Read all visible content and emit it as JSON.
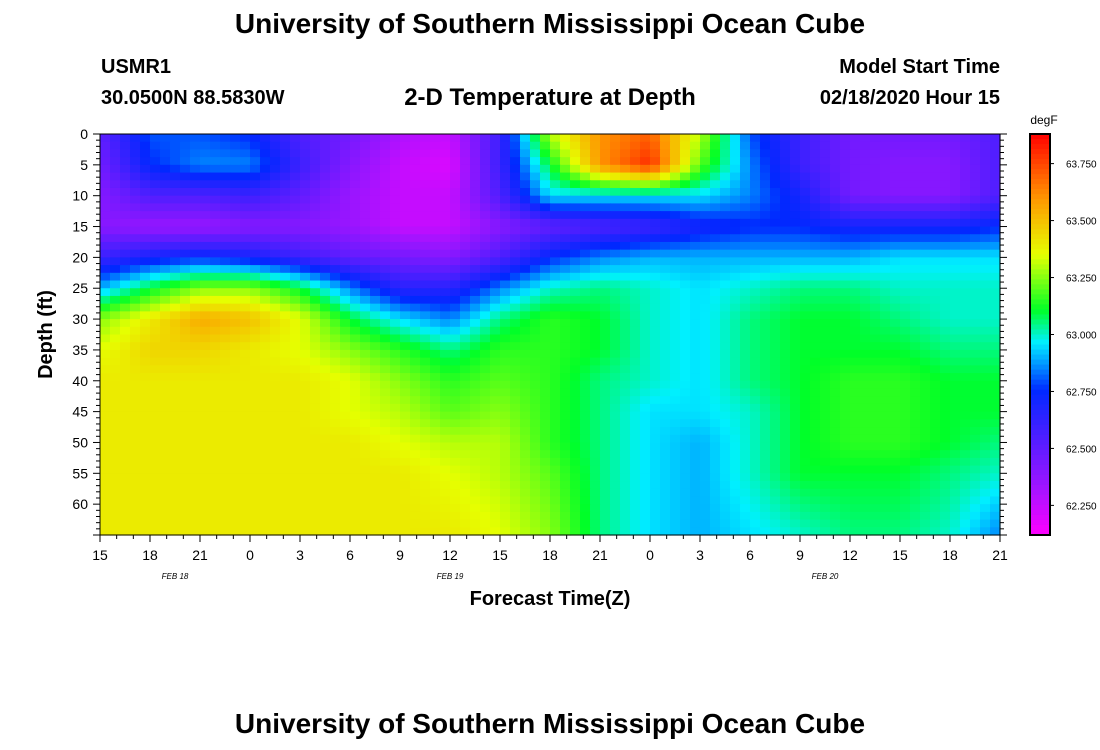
{
  "header": {
    "title": "University of Southern Mississippi Ocean Cube",
    "station": "USMR1",
    "coords": "30.0500N 88.5830W",
    "plot_title": "2-D Temperature at Depth",
    "model_start_label": "Model Start Time",
    "model_start_value": "02/18/2020 Hour 15"
  },
  "footer": {
    "title": "University of Southern Mississippi Ocean Cube"
  },
  "chart_data": {
    "type": "heatmap",
    "title": "2-D Temperature at Depth",
    "xlabel": "Forecast Time(Z)",
    "ylabel": "Depth (ft)",
    "colorbar_label": "degF",
    "colorbar_ticks": [
      "62.250",
      "62.500",
      "62.750",
      "63.000",
      "63.250",
      "63.500",
      "63.750"
    ],
    "color_range": [
      62.12,
      63.88
    ],
    "x_ticks": [
      "15",
      "18",
      "21",
      "0",
      "3",
      "6",
      "9",
      "12",
      "15",
      "18",
      "21",
      "0",
      "3",
      "6",
      "9",
      "12",
      "15",
      "18",
      "21"
    ],
    "date_labels": [
      {
        "label": "FEB 18",
        "tick_index": 1.5
      },
      {
        "label": "FEB 19",
        "tick_index": 7
      },
      {
        "label": "FEB 20",
        "tick_index": 14.5
      }
    ],
    "y_ticks": [
      0,
      5,
      10,
      15,
      20,
      25,
      30,
      35,
      40,
      45,
      50,
      55,
      60
    ],
    "ylim": [
      0,
      65
    ],
    "x_hours": [
      0,
      3,
      6,
      9,
      12,
      15,
      18,
      21,
      24,
      27,
      30,
      33,
      36,
      39,
      42,
      45,
      48,
      51,
      54
    ],
    "depths": [
      0,
      5,
      10,
      15,
      20,
      25,
      30,
      35,
      40,
      45,
      50,
      55,
      65
    ],
    "temperatures": [
      [
        62.5,
        62.8,
        62.8,
        62.75,
        62.55,
        62.45,
        62.3,
        62.25,
        62.6,
        63.3,
        63.6,
        63.7,
        63.3,
        62.8,
        62.6,
        62.45,
        62.45,
        62.45,
        62.55
      ],
      [
        62.45,
        62.75,
        62.85,
        62.85,
        62.6,
        62.4,
        62.25,
        62.2,
        62.6,
        63.1,
        63.6,
        63.8,
        63.2,
        62.85,
        62.6,
        62.45,
        62.4,
        62.4,
        62.55
      ],
      [
        62.4,
        62.55,
        62.55,
        62.6,
        62.5,
        62.35,
        62.25,
        62.25,
        62.55,
        62.95,
        62.95,
        62.95,
        62.95,
        62.85,
        62.7,
        62.45,
        62.4,
        62.4,
        62.55
      ],
      [
        62.4,
        62.35,
        62.35,
        62.4,
        62.4,
        62.35,
        62.25,
        62.25,
        62.4,
        62.5,
        62.55,
        62.6,
        62.7,
        62.75,
        62.75,
        62.7,
        62.7,
        62.7,
        62.75
      ],
      [
        62.6,
        62.7,
        62.75,
        62.7,
        62.6,
        62.5,
        62.45,
        62.4,
        62.55,
        62.75,
        62.85,
        62.9,
        62.9,
        62.9,
        62.9,
        62.9,
        62.95,
        62.95,
        62.95
      ],
      [
        62.9,
        63.1,
        63.25,
        63.25,
        63.1,
        62.85,
        62.65,
        62.65,
        62.85,
        63.0,
        63.05,
        63.0,
        62.95,
        63.0,
        63.05,
        63.05,
        63.0,
        63.0,
        63.0
      ],
      [
        63.25,
        63.4,
        63.55,
        63.5,
        63.35,
        63.1,
        62.95,
        62.85,
        63.05,
        63.15,
        63.1,
        63.0,
        62.95,
        63.05,
        63.1,
        63.1,
        63.05,
        63.0,
        63.0
      ],
      [
        63.35,
        63.45,
        63.45,
        63.4,
        63.35,
        63.25,
        63.15,
        63.05,
        63.15,
        63.15,
        63.1,
        63.0,
        62.95,
        63.05,
        63.1,
        63.1,
        63.1,
        63.05,
        63.05
      ],
      [
        63.4,
        63.4,
        63.4,
        63.4,
        63.4,
        63.35,
        63.25,
        63.15,
        63.2,
        63.15,
        63.05,
        63.0,
        62.95,
        63.05,
        63.1,
        63.15,
        63.15,
        63.1,
        63.1
      ],
      [
        63.4,
        63.4,
        63.4,
        63.4,
        63.4,
        63.35,
        63.3,
        63.2,
        63.25,
        63.15,
        63.05,
        62.95,
        62.95,
        63.0,
        63.1,
        63.15,
        63.15,
        63.1,
        63.1
      ],
      [
        63.4,
        63.4,
        63.4,
        63.4,
        63.4,
        63.4,
        63.35,
        63.3,
        63.3,
        63.15,
        63.05,
        62.95,
        62.9,
        63.0,
        63.1,
        63.15,
        63.15,
        63.1,
        63.05
      ],
      [
        63.4,
        63.4,
        63.4,
        63.4,
        63.4,
        63.4,
        63.4,
        63.35,
        63.3,
        63.2,
        63.05,
        62.95,
        62.9,
        63.0,
        63.1,
        63.1,
        63.1,
        63.05,
        63.0
      ],
      [
        63.4,
        63.4,
        63.4,
        63.4,
        63.4,
        63.4,
        63.4,
        63.4,
        63.35,
        63.25,
        63.05,
        62.95,
        62.9,
        62.95,
        63.0,
        63.05,
        63.05,
        63.0,
        62.85
      ]
    ]
  }
}
